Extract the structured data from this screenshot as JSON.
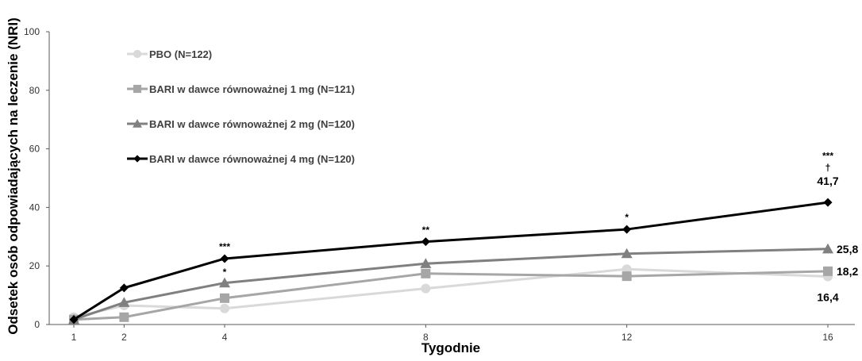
{
  "chart_data": {
    "type": "line",
    "xlabel": "Tygodnie",
    "ylabel": "Odsetek osób odpowiadających na leczenie  (NRI)",
    "x": [
      1,
      2,
      4,
      8,
      12,
      16
    ],
    "xlim": [
      0,
      17
    ],
    "ylim": [
      0,
      100
    ],
    "yticks": [
      0,
      20,
      40,
      60,
      80,
      100
    ],
    "grid": false,
    "legend": "top-left",
    "series": [
      {
        "name": "PBO (N=122)",
        "color": "#d9d9d9",
        "marker": "circle",
        "values": [
          2.5,
          6.5,
          5.5,
          12.3,
          18.9,
          16.4
        ]
      },
      {
        "name": "BARI w dawce równoważnej 1 mg (N=121)",
        "color": "#a6a6a6",
        "marker": "square",
        "values": [
          1.7,
          2.5,
          9.0,
          17.4,
          16.5,
          18.2
        ]
      },
      {
        "name": "BARI w dawce równoważnej 2 mg (N=120)",
        "color": "#808080",
        "marker": "triangle",
        "values": [
          1.7,
          7.5,
          14.2,
          20.8,
          24.2,
          25.8
        ]
      },
      {
        "name": "BARI w dawce równoważnej 4 mg (N=120)",
        "color": "#000000",
        "marker": "diamond",
        "values": [
          1.7,
          12.5,
          22.5,
          28.3,
          32.5,
          41.7
        ]
      }
    ],
    "annotations": [
      {
        "x": 4,
        "y": 25.5,
        "text": "***"
      },
      {
        "x": 4,
        "y": 16.8,
        "text": "*"
      },
      {
        "x": 8,
        "y": 31.2,
        "text": "**"
      },
      {
        "x": 12,
        "y": 35.5,
        "text": "*"
      },
      {
        "x": 16,
        "y": 56.5,
        "text": "***"
      },
      {
        "x": 16,
        "y": 52.5,
        "text": "†"
      }
    ],
    "data_labels": [
      {
        "series": 3,
        "x": 16,
        "y": 41.7,
        "text": "41,7",
        "pos": "above"
      },
      {
        "series": 2,
        "x": 16,
        "y": 25.8,
        "text": "25,8",
        "pos": "right"
      },
      {
        "series": 1,
        "x": 16,
        "y": 18.2,
        "text": "18,2",
        "pos": "right"
      },
      {
        "series": 0,
        "x": 16,
        "y": 16.4,
        "text": "16,4",
        "pos": "below"
      }
    ]
  }
}
